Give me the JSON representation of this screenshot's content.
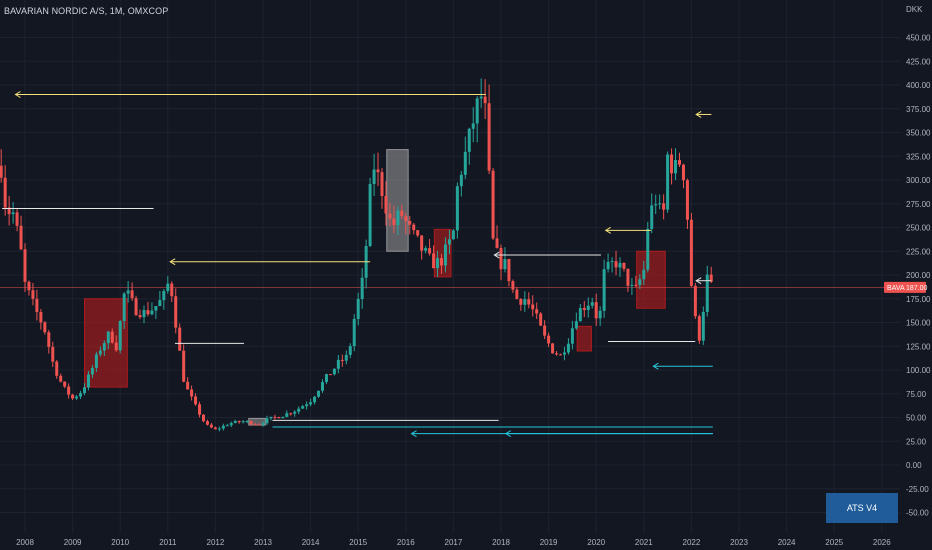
{
  "header": {
    "symbol_title": "BAVARIAN NORDIC A/S, 1M, OMXCOP"
  },
  "badge": {
    "label": "ATS V4"
  },
  "colors": {
    "background": "#131722",
    "up": "#26a69a",
    "down": "#ef5350",
    "yellow_line": "#f5e07a",
    "white_line": "#e6e6e6",
    "cyan_line": "#26c6da",
    "zone_red": "#b71c1c",
    "zone_grey": "#9e9e9e",
    "price_line": "#ef5350",
    "badge": "#1f5c99"
  },
  "chart_data": {
    "type": "candlestick",
    "currency": "DKK",
    "price_tag": {
      "label": "BAVA",
      "value": "187.00",
      "price": 187
    },
    "y_ticks": [
      "450.00",
      "425.00",
      "400.00",
      "375.00",
      "350.00",
      "325.00",
      "300.00",
      "275.00",
      "250.00",
      "225.00",
      "200.00",
      "175.00",
      "150.00",
      "125.00",
      "100.00",
      "75.00",
      "50.00",
      "25.00",
      "0.00",
      "-25.00",
      "-50.00"
    ],
    "x_ticks": [
      "2008",
      "2009",
      "2010",
      "2011",
      "2012",
      "2013",
      "2014",
      "2015",
      "2016",
      "2017",
      "2018",
      "2019",
      "2020",
      "2021",
      "2022",
      "2023",
      "2024",
      "2025",
      "2026"
    ],
    "ylim": [
      -55,
      460
    ],
    "xlim": [
      2007.52,
      2026.6
    ],
    "anchors": [
      [
        2007.5,
        315
      ],
      [
        2007.6,
        270
      ],
      [
        2007.75,
        265
      ],
      [
        2007.9,
        230
      ],
      [
        2008.0,
        190
      ],
      [
        2008.2,
        165
      ],
      [
        2008.4,
        145
      ],
      [
        2008.6,
        105
      ],
      [
        2008.8,
        82
      ],
      [
        2009.0,
        70
      ],
      [
        2009.2,
        78
      ],
      [
        2009.4,
        100
      ],
      [
        2009.6,
        125
      ],
      [
        2009.8,
        140
      ],
      [
        2009.9,
        120
      ],
      [
        2010.0,
        150
      ],
      [
        2010.1,
        185
      ],
      [
        2010.3,
        165
      ],
      [
        2010.5,
        160
      ],
      [
        2010.7,
        165
      ],
      [
        2010.9,
        175
      ],
      [
        2011.0,
        190
      ],
      [
        2011.1,
        180
      ],
      [
        2011.2,
        135
      ],
      [
        2011.35,
        85
      ],
      [
        2011.6,
        60
      ],
      [
        2011.8,
        42
      ],
      [
        2012.0,
        37
      ],
      [
        2012.3,
        44
      ],
      [
        2012.6,
        46
      ],
      [
        2012.9,
        43
      ],
      [
        2013.1,
        48
      ],
      [
        2013.4,
        52
      ],
      [
        2013.7,
        58
      ],
      [
        2014.0,
        68
      ],
      [
        2014.3,
        90
      ],
      [
        2014.6,
        108
      ],
      [
        2014.8,
        115
      ],
      [
        2014.9,
        150
      ],
      [
        2015.1,
        195
      ],
      [
        2015.2,
        250
      ],
      [
        2015.3,
        320
      ],
      [
        2015.5,
        290
      ],
      [
        2015.7,
        250
      ],
      [
        2015.9,
        265
      ],
      [
        2016.1,
        245
      ],
      [
        2016.3,
        230
      ],
      [
        2016.5,
        215
      ],
      [
        2016.7,
        212
      ],
      [
        2016.9,
        230
      ],
      [
        2017.0,
        245
      ],
      [
        2017.1,
        300
      ],
      [
        2017.3,
        335
      ],
      [
        2017.45,
        370
      ],
      [
        2017.6,
        390
      ],
      [
        2017.7,
        360
      ],
      [
        2017.8,
        240
      ],
      [
        2017.95,
        215
      ],
      [
        2018.1,
        210
      ],
      [
        2018.3,
        175
      ],
      [
        2018.5,
        175
      ],
      [
        2018.7,
        160
      ],
      [
        2018.9,
        135
      ],
      [
        2019.1,
        120
      ],
      [
        2019.25,
        115
      ],
      [
        2019.4,
        130
      ],
      [
        2019.6,
        160
      ],
      [
        2019.8,
        170
      ],
      [
        2019.95,
        175
      ],
      [
        2020.05,
        140
      ],
      [
        2020.15,
        200
      ],
      [
        2020.4,
        215
      ],
      [
        2020.6,
        200
      ],
      [
        2020.8,
        180
      ],
      [
        2021.0,
        205
      ],
      [
        2021.1,
        260
      ],
      [
        2021.25,
        280
      ],
      [
        2021.4,
        255
      ],
      [
        2021.5,
        325
      ],
      [
        2021.65,
        310
      ],
      [
        2021.8,
        325
      ],
      [
        2021.9,
        275
      ],
      [
        2022.0,
        190
      ],
      [
        2022.1,
        145
      ],
      [
        2022.2,
        130
      ],
      [
        2022.3,
        200
      ],
      [
        2022.42,
        187
      ]
    ],
    "zones": [
      {
        "color": "red",
        "x": [
          2009.25,
          2010.15
        ],
        "y": [
          82,
          175
        ]
      },
      {
        "color": "red",
        "x": [
          2016.6,
          2016.95
        ],
        "y": [
          198,
          248
        ]
      },
      {
        "color": "grey",
        "x": [
          2015.6,
          2016.05
        ],
        "y": [
          225,
          332
        ]
      },
      {
        "color": "red",
        "x": [
          2019.6,
          2019.9
        ],
        "y": [
          120,
          146
        ]
      },
      {
        "color": "red",
        "x": [
          2020.85,
          2021.45
        ],
        "y": [
          165,
          225
        ]
      },
      {
        "color": "grey",
        "x": [
          2012.7,
          2013.05
        ],
        "y": [
          42,
          49
        ]
      }
    ],
    "levels": [
      {
        "color": "yellow",
        "price": 390,
        "x": [
          2007.8,
          2017.68
        ],
        "arrow": "left"
      },
      {
        "color": "white",
        "price": 270,
        "x": [
          2007.52,
          2010.7
        ]
      },
      {
        "color": "yellow",
        "price": 214,
        "x": [
          2011.05,
          2015.25
        ],
        "arrow": "left"
      },
      {
        "color": "white",
        "price": 128,
        "x": [
          2011.15,
          2012.6
        ]
      },
      {
        "color": "white",
        "price": 47,
        "x": [
          2013.2,
          2017.95
        ]
      },
      {
        "color": "cyan",
        "price": 40,
        "x": [
          2013.2,
          2022.45
        ]
      },
      {
        "color": "cyan",
        "price": 33,
        "x": [
          2016.12,
          2022.45
        ],
        "arrow": "left"
      },
      {
        "color": "cyan",
        "price": 33,
        "x": [
          2018.1,
          2022.45
        ],
        "arrow": "left"
      },
      {
        "color": "white",
        "price": 221,
        "x": [
          2017.86,
          2020.1
        ],
        "arrow": "left"
      },
      {
        "color": "yellow",
        "price": 247,
        "x": [
          2020.2,
          2021.15
        ],
        "arrow": "left"
      },
      {
        "color": "white",
        "price": 130,
        "x": [
          2020.25,
          2022.08
        ]
      },
      {
        "color": "white",
        "price": 194,
        "x": [
          2022.1,
          2022.42
        ],
        "arrow": "left"
      },
      {
        "color": "cyan",
        "price": 104,
        "x": [
          2021.2,
          2022.45
        ],
        "arrow": "left"
      },
      {
        "color": "yellow",
        "price": 369,
        "x": [
          2022.1,
          2022.42
        ],
        "arrow": "left"
      }
    ]
  }
}
